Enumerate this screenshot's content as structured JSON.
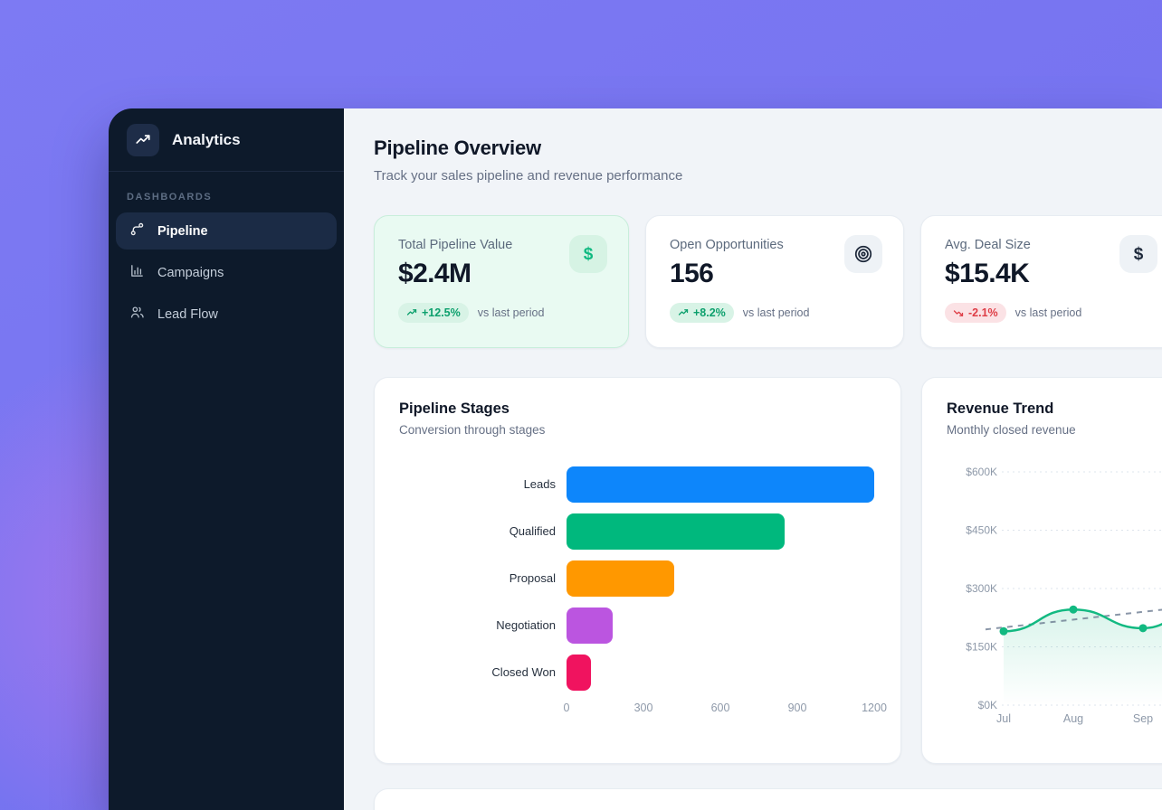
{
  "app": {
    "name": "Analytics"
  },
  "sidebar": {
    "section_label": "DASHBOARDS",
    "items": [
      {
        "label": "Pipeline",
        "icon": "route-icon",
        "active": true
      },
      {
        "label": "Campaigns",
        "icon": "bar-chart-icon",
        "active": false
      },
      {
        "label": "Lead Flow",
        "icon": "users-icon",
        "active": false
      }
    ]
  },
  "header": {
    "title": "Pipeline Overview",
    "subtitle": "Track your sales pipeline and revenue performance"
  },
  "kpis": [
    {
      "label": "Total Pipeline Value",
      "value": "$2.4M",
      "delta": "+12.5%",
      "trend": "up",
      "note": "vs last period",
      "icon": "dollar-icon",
      "highlight": true
    },
    {
      "label": "Open Opportunities",
      "value": "156",
      "delta": "+8.2%",
      "trend": "up",
      "note": "vs last period",
      "icon": "target-icon",
      "highlight": false
    },
    {
      "label": "Avg. Deal Size",
      "value": "$15.4K",
      "delta": "-2.1%",
      "trend": "down",
      "note": "vs last period",
      "icon": "dollar-icon",
      "highlight": false
    }
  ],
  "colors": {
    "background_purple": "#7673ef",
    "background_pink_glow": "#de7ae8",
    "sidebar_bg": "#0d1a2b",
    "sidebar_active_bg": "#1b2b45",
    "main_bg": "#f1f4f8",
    "accent_green": "#10b981",
    "accent_red": "#de3d46",
    "text_dark": "#101828",
    "text_muted": "#667085",
    "axis_text": "#8e99a9"
  },
  "chart_data": [
    {
      "type": "bar",
      "orientation": "horizontal",
      "title": "Pipeline Stages",
      "subtitle": "Conversion through stages",
      "categories": [
        "Leads",
        "Qualified",
        "Proposal",
        "Negotiation",
        "Closed Won"
      ],
      "values": [
        1200,
        850,
        420,
        180,
        95
      ],
      "colors": [
        "#0d86fb",
        "#00b87d",
        "#ff9800",
        "#bb55e0",
        "#f0135f"
      ],
      "xticks": [
        0,
        300,
        600,
        900,
        1200
      ],
      "xlim": [
        0,
        1200
      ],
      "grid": false
    },
    {
      "type": "line",
      "title": "Revenue Trend",
      "subtitle": "Monthly closed revenue",
      "x": [
        "Jul",
        "Aug",
        "Sep"
      ],
      "series": [
        {
          "name": "revenue",
          "style": "solid-green-markers",
          "values": [
            190000,
            246000,
            198000
          ]
        },
        {
          "name": "trend",
          "style": "dashed-gray",
          "values": [
            200000,
            220000,
            240000
          ]
        }
      ],
      "yticks": [
        "$600K",
        "$450K",
        "$300K",
        "$150K",
        "$0K"
      ],
      "ylim": [
        0,
        600000
      ],
      "grid": true,
      "area_fill": true,
      "continues_beyond_view": true
    }
  ]
}
